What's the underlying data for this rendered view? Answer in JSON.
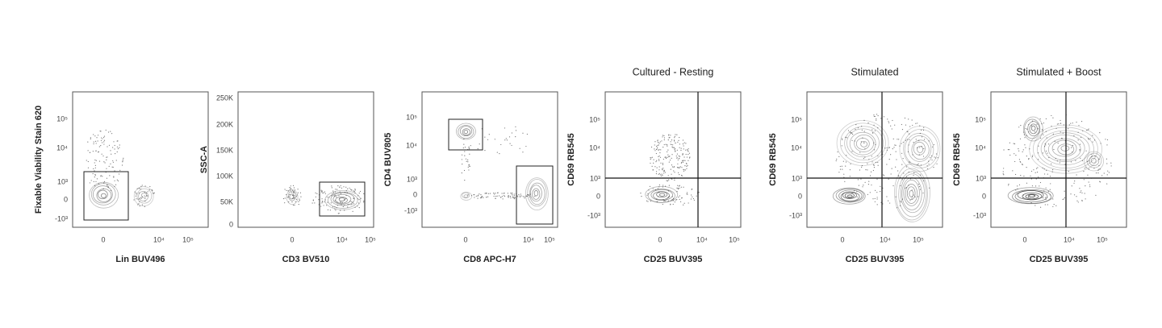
{
  "panels": [
    {
      "title": null,
      "x_label": "Lin BUV496",
      "y_label": "Fixable Viability Stain 620",
      "x_tick_labels": [
        "0",
        "10⁴",
        "10⁵"
      ],
      "y_tick_labels": [
        "10⁵",
        "10⁴",
        "10³",
        "0",
        "-10³"
      ]
    },
    {
      "title": null,
      "x_label": "CD3 BV510",
      "y_label": "SSC-A",
      "x_tick_labels": [
        "0",
        "10⁴",
        "10⁵"
      ],
      "y_tick_labels": [
        "250K",
        "200K",
        "150K",
        "100K",
        "50K",
        "0"
      ]
    },
    {
      "title": null,
      "x_label": "CD8 APC-H7",
      "y_label": "CD4 BUV805",
      "x_tick_labels": [
        "0",
        "10⁴",
        "10⁵"
      ],
      "y_tick_labels": [
        "10⁵",
        "10⁴",
        "10³",
        "0",
        "-10³"
      ]
    },
    {
      "title": "Cultured - Resting",
      "x_label": "CD25 BUV395",
      "y_label": "CD69 RB545",
      "x_tick_labels": [
        "0",
        "10⁴",
        "10⁵"
      ],
      "y_tick_labels": [
        "10⁵",
        "10⁴",
        "10³",
        "0",
        "-10³"
      ]
    },
    {
      "title": "Stimulated",
      "x_label": "CD25 BUV395",
      "y_label": "CD69 RB545",
      "x_tick_labels": [
        "0",
        "10⁴",
        "10⁵"
      ],
      "y_tick_labels": [
        "10⁵",
        "10⁴",
        "10³",
        "0",
        "-10³"
      ]
    },
    {
      "title": "Stimulated + Boost",
      "x_label": "CD25 BUV395",
      "y_label": "CD69 RB545",
      "x_tick_labels": [
        "0",
        "10⁴",
        "10⁵"
      ],
      "y_tick_labels": [
        "10⁵",
        "10⁴",
        "10³",
        "0",
        "-10³"
      ]
    }
  ]
}
